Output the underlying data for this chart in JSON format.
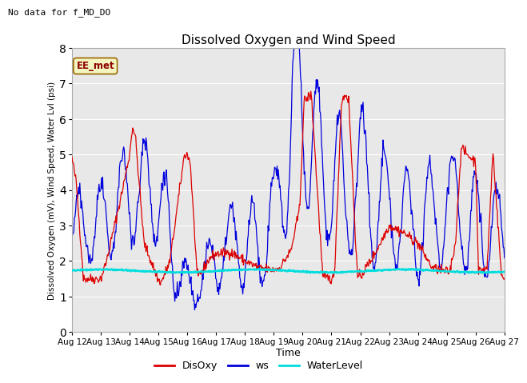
{
  "title": "Dissolved Oxygen and Wind Speed",
  "xlabel": "Time",
  "ylabel": "Dissolved Oxygen (mV), Wind Speed, Water Lvl (psi)",
  "top_left_text": "No data for f_MD_DO",
  "annotation_box": "EE_met",
  "ylim": [
    0.0,
    8.0
  ],
  "yticks": [
    0.0,
    1.0,
    2.0,
    3.0,
    4.0,
    5.0,
    6.0,
    7.0,
    8.0
  ],
  "xtick_labels": [
    "Aug 12",
    "Aug 13",
    "Aug 14",
    "Aug 15",
    "Aug 16",
    "Aug 17",
    "Aug 18",
    "Aug 19",
    "Aug 20",
    "Aug 21",
    "Aug 22",
    "Aug 23",
    "Aug 24",
    "Aug 25",
    "Aug 26",
    "Aug 27"
  ],
  "disoxy_color": "#dd0000",
  "ws_color": "#0000dd",
  "waterlevel_color": "#00dddd",
  "bg_color": "#e8e8e8",
  "legend_labels": [
    "DisOxy",
    "ws",
    "WaterLevel"
  ],
  "seed": 42,
  "figsize": [
    6.4,
    4.8
  ],
  "dpi": 100
}
